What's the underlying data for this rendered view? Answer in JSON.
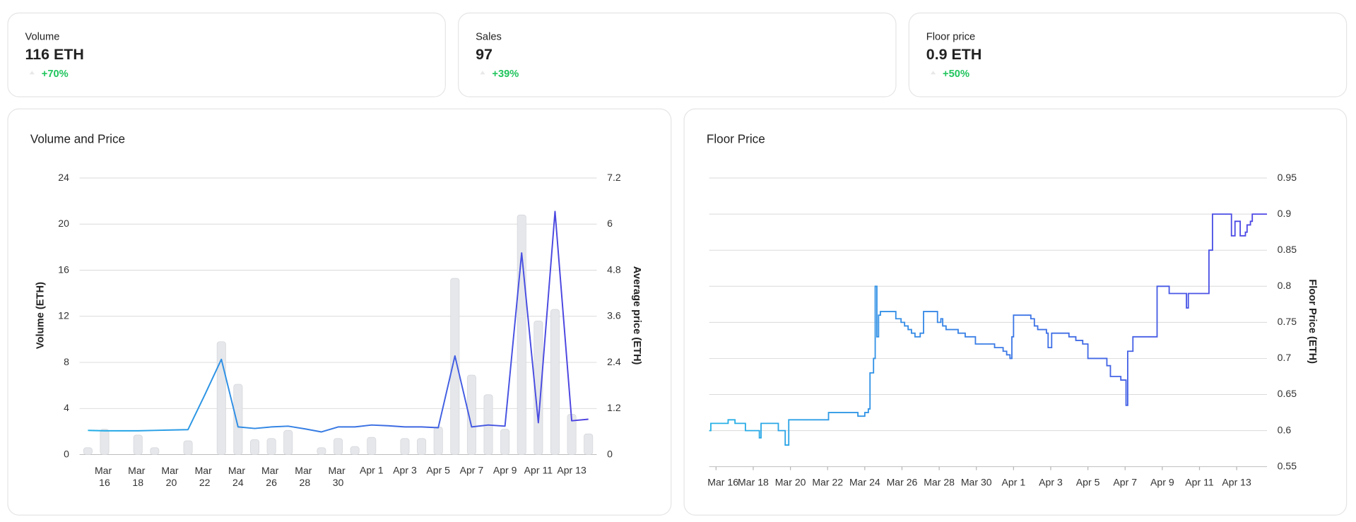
{
  "cards": [
    {
      "label": "Volume",
      "value": "116 ETH",
      "change": "+70%"
    },
    {
      "label": "Sales",
      "value": "97",
      "change": "+39%"
    },
    {
      "label": "Floor price",
      "value": "0.9 ETH",
      "change": "+50%"
    }
  ],
  "chart_data": [
    {
      "type": "combo",
      "title": "Volume and Price",
      "y_label": "Volume (ETH)",
      "y2_label": "Average price (ETH)",
      "categories": [
        null,
        "Mar 16",
        null,
        "Mar 18",
        null,
        "Mar 20",
        null,
        "Mar 22",
        null,
        "Mar 24",
        null,
        "Mar 26",
        null,
        "Mar 28",
        null,
        "Mar 30",
        null,
        "Apr 1",
        null,
        "Apr 3",
        null,
        "Apr 5",
        null,
        "Apr 7",
        null,
        "Apr 9",
        null,
        "Apr 11",
        null,
        "Apr 13",
        null
      ],
      "series": [
        {
          "type": "bar",
          "color": "#e5e7eb",
          "values": [
            0.6,
            2.2,
            0,
            1.7,
            0.6,
            0,
            1.2,
            0,
            9.8,
            6.1,
            1.3,
            1.4,
            2.1,
            0,
            0.6,
            1.4,
            0.7,
            1.5,
            0,
            1.4,
            1.4,
            2.4,
            15.3,
            6.9,
            5.2,
            2.2,
            20.8,
            11.6,
            12.6,
            3.5,
            1.8
          ]
        },
        {
          "type": "line",
          "axis": "y2",
          "colors": [
            "#22aee6",
            "#4f3fe0"
          ],
          "values": [
            0.63,
            0.62,
            0.62,
            0.62,
            0.63,
            0.64,
            0.65,
            1.55,
            2.48,
            0.72,
            0.68,
            0.72,
            0.74,
            0.67,
            0.59,
            0.72,
            0.72,
            0.77,
            0.75,
            0.72,
            0.72,
            0.7,
            2.57,
            0.72,
            0.77,
            0.74,
            5.25,
            0.83,
            6.33,
            0.88,
            0.92
          ]
        }
      ],
      "ylim": [
        0,
        24
      ],
      "yticks": [
        0,
        4,
        8,
        12,
        16,
        20,
        24
      ],
      "y2lim": [
        0,
        7.2
      ],
      "y2ticks": [
        0,
        1.2,
        2.4,
        3.6,
        4.8,
        6,
        7.2
      ],
      "grid": true
    },
    {
      "type": "line",
      "step": true,
      "title": "Floor Price",
      "y_label": "Floor Price (ETH)",
      "colors": [
        "#27b3e6",
        "#4f46e5"
      ],
      "x": [
        15.63,
        15.72,
        16.65,
        17.02,
        17.58,
        18.33,
        18.42,
        19.35,
        19.72,
        19.91,
        22.05,
        23.63,
        24.0,
        24.19,
        24.28,
        24.47,
        24.56,
        24.65,
        24.74,
        24.84,
        25.67,
        25.95,
        26.14,
        26.33,
        26.51,
        26.7,
        26.98,
        27.16,
        27.91,
        28.09,
        28.19,
        28.37,
        29.02,
        29.4,
        29.95,
        30.98,
        31.44,
        31.63,
        31.81,
        31.91,
        32.0,
        32.93,
        33.12,
        33.3,
        33.77,
        33.86,
        34.05,
        34.98,
        35.35,
        35.72,
        36.0,
        37.02,
        37.21,
        37.77,
        38.05,
        38.14,
        38.42,
        39.72,
        40.37,
        41.3,
        41.4,
        42.51,
        42.7,
        43.72,
        43.91,
        44.19,
        44.47,
        44.56,
        44.74,
        44.84,
        45.63
      ],
      "values": [
        0.6,
        0.61,
        0.615,
        0.61,
        0.6,
        0.59,
        0.61,
        0.6,
        0.58,
        0.615,
        0.625,
        0.62,
        0.625,
        0.63,
        0.68,
        0.7,
        0.8,
        0.73,
        0.76,
        0.765,
        0.755,
        0.75,
        0.745,
        0.74,
        0.735,
        0.73,
        0.735,
        0.765,
        0.75,
        0.755,
        0.745,
        0.74,
        0.735,
        0.73,
        0.72,
        0.715,
        0.71,
        0.705,
        0.7,
        0.73,
        0.76,
        0.755,
        0.745,
        0.74,
        0.735,
        0.715,
        0.735,
        0.73,
        0.725,
        0.72,
        0.7,
        0.69,
        0.675,
        0.67,
        0.635,
        0.71,
        0.73,
        0.8,
        0.79,
        0.77,
        0.79,
        0.85,
        0.9,
        0.87,
        0.89,
        0.87,
        0.875,
        0.885,
        0.89,
        0.9,
        0.9
      ],
      "xlim": [
        15.63,
        45.63
      ],
      "xticks": [
        {
          "value": 16,
          "label": "Mar 16"
        },
        {
          "value": 18,
          "label": "Mar 18"
        },
        {
          "value": 20,
          "label": "Mar 20"
        },
        {
          "value": 22,
          "label": "Mar 22"
        },
        {
          "value": 24,
          "label": "Mar 24"
        },
        {
          "value": 26,
          "label": "Mar 26"
        },
        {
          "value": 28,
          "label": "Mar 28"
        },
        {
          "value": 30,
          "label": "Mar 30"
        },
        {
          "value": 32,
          "label": "Apr 1"
        },
        {
          "value": 34,
          "label": "Apr 3"
        },
        {
          "value": 36,
          "label": "Apr 5"
        },
        {
          "value": 38,
          "label": "Apr 7"
        },
        {
          "value": 40,
          "label": "Apr 9"
        },
        {
          "value": 42,
          "label": "Apr 11"
        },
        {
          "value": 44,
          "label": "Apr 13"
        }
      ],
      "ylim": [
        0.55,
        0.95
      ],
      "yticks": [
        0.55,
        0.6,
        0.65,
        0.7,
        0.75,
        0.8,
        0.85,
        0.9,
        0.95
      ],
      "grid": true
    }
  ]
}
